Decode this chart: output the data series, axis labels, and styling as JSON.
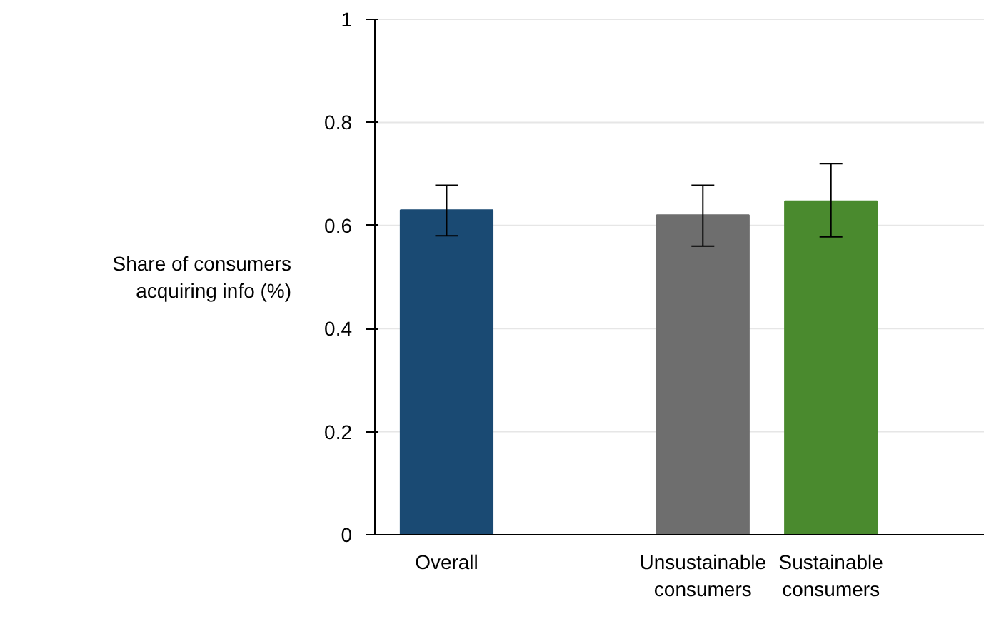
{
  "chart_data": {
    "type": "bar",
    "ylabel": "Share of consumers acquiring info (%)",
    "categories": [
      "Overall",
      null,
      "Unsustainable consumers",
      "Sustainable consumers"
    ],
    "values": [
      0.63,
      null,
      0.62,
      0.647
    ],
    "colors": [
      "#1a4a73",
      "#ffffff",
      "#6e6e6e",
      "#4a8a2e"
    ],
    "errors": [
      [
        0.58,
        0.678
      ],
      null,
      [
        0.56,
        0.678
      ],
      [
        0.578,
        0.72
      ]
    ],
    "ylim": [
      0,
      1
    ],
    "yticks": [
      0,
      0.2,
      0.4,
      0.6,
      0.8,
      1
    ],
    "grid": "y"
  }
}
